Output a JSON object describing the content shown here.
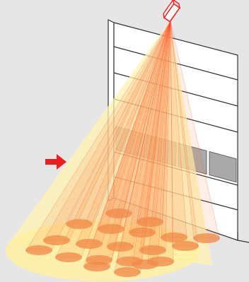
{
  "diagram": {
    "description_free": true,
    "colors": {
      "background": "#e6e6e6",
      "door_panel": "#ffffff",
      "door_line": "#333333",
      "window": "#a9a9a9",
      "outer_cone": "#fff3b0",
      "beam_fill": "#ff7a3a",
      "beam_stroke": "#ff3b1f",
      "spot_fill": "#f08a4a",
      "sensor_stroke": "#ff1a1a",
      "arrow": "#ee1c1c"
    },
    "icons": {
      "sensor": "motion-sensor-icon",
      "arrow": "arrow-right-icon"
    },
    "detection_zone_rows": 5,
    "detection_zone_columns": 5
  }
}
